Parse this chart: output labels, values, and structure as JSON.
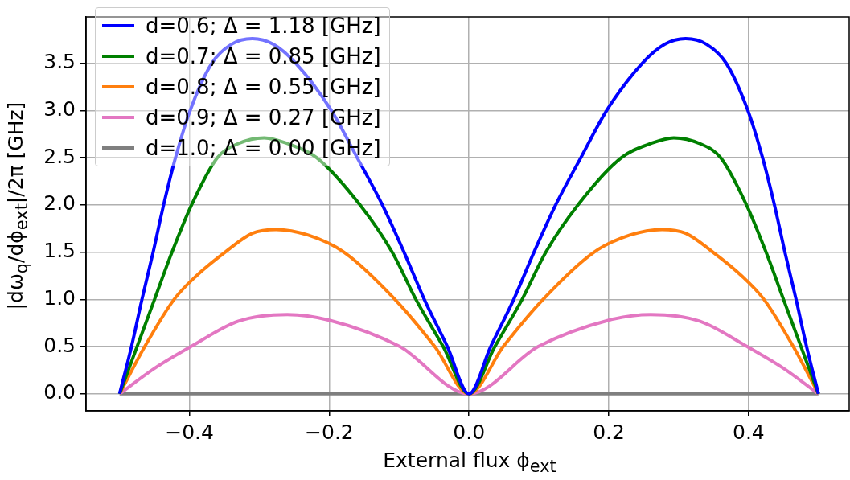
{
  "chart_data": {
    "type": "line",
    "xlabel": "External flux ϕ$_{ext}$",
    "ylabel": "|dω$_{q}$/dϕ$_{ext}$|/2π [GHz]",
    "xlim": [
      -0.548,
      0.544
    ],
    "ylim": [
      -0.18,
      3.99
    ],
    "xticks": [
      {
        "value": -0.4,
        "label": "−0.4"
      },
      {
        "value": -0.2,
        "label": "−0.2"
      },
      {
        "value": 0,
        "label": "0.0"
      },
      {
        "value": 0.2,
        "label": "0.2"
      },
      {
        "value": 0.4,
        "label": "0.4"
      }
    ],
    "yticks": [
      {
        "value": 0,
        "label": "0.0"
      },
      {
        "value": 0.5,
        "label": "0.5"
      },
      {
        "value": 1,
        "label": "1.0"
      },
      {
        "value": 1.5,
        "label": "1.5"
      },
      {
        "value": 2,
        "label": "2.0"
      },
      {
        "value": 2.5,
        "label": "2.5"
      },
      {
        "value": 3,
        "label": "3.0"
      },
      {
        "value": 3.5,
        "label": "3.5"
      }
    ],
    "grid": true,
    "legend": "top left",
    "marker": "none",
    "line_style": "solid",
    "series": [
      {
        "name": "d=0.6; Δ = 1.18 [GHz]",
        "color": "#0000ff",
        "x": [
          -0.5,
          -0.483,
          -0.468,
          -0.452,
          -0.437,
          -0.42,
          -0.399,
          -0.368,
          -0.34,
          -0.31,
          -0.28,
          -0.248,
          -0.197,
          -0.16,
          -0.124,
          -0.093,
          -0.064,
          -0.031,
          0,
          0.031,
          0.064,
          0.093,
          0.124,
          0.16,
          0.197,
          0.248,
          0.28,
          0.31,
          0.34,
          0.368,
          0.399,
          0.42,
          0.437,
          0.452,
          0.468,
          0.483,
          0.5
        ],
        "values": [
          0,
          0.5,
          1.0,
          1.5,
          2.0,
          2.5,
          3.0,
          3.5,
          3.7,
          3.76,
          3.7,
          3.5,
          3.0,
          2.5,
          2.0,
          1.5,
          1.0,
          0.5,
          0,
          0.5,
          1.0,
          1.5,
          2.0,
          2.5,
          3.0,
          3.5,
          3.7,
          3.76,
          3.7,
          3.5,
          3.0,
          2.5,
          2.0,
          1.5,
          1.0,
          0.5,
          0
        ]
      },
      {
        "name": "d=0.7; Δ = 0.85 [GHz]",
        "color": "#008000",
        "x": [
          -0.5,
          -0.475,
          -0.45,
          -0.425,
          -0.397,
          -0.36,
          -0.33,
          -0.293,
          -0.26,
          -0.218,
          -0.156,
          -0.11,
          -0.076,
          -0.037,
          0,
          0.037,
          0.076,
          0.11,
          0.156,
          0.218,
          0.26,
          0.293,
          0.33,
          0.36,
          0.397,
          0.425,
          0.45,
          0.475,
          0.5
        ],
        "values": [
          0,
          0.5,
          1.0,
          1.5,
          2.0,
          2.5,
          2.65,
          2.71,
          2.65,
          2.5,
          2.0,
          1.5,
          1.0,
          0.5,
          0,
          0.5,
          1.0,
          1.5,
          2.0,
          2.5,
          2.65,
          2.71,
          2.65,
          2.5,
          2.0,
          1.5,
          1.0,
          0.5,
          0
        ]
      },
      {
        "name": "d=0.8; Δ = 0.55 [GHz]",
        "color": "#ff7f0e",
        "x": [
          -0.5,
          -0.464,
          -0.422,
          -0.39,
          -0.349,
          -0.31,
          -0.276,
          -0.23,
          -0.179,
          -0.106,
          -0.049,
          0,
          0.049,
          0.106,
          0.179,
          0.23,
          0.276,
          0.31,
          0.349,
          0.39,
          0.422,
          0.464,
          0.5
        ],
        "values": [
          0,
          0.5,
          1.0,
          1.25,
          1.5,
          1.7,
          1.74,
          1.68,
          1.5,
          1.0,
          0.5,
          0,
          0.5,
          1.0,
          1.5,
          1.68,
          1.74,
          1.7,
          1.5,
          1.25,
          1.0,
          0.5,
          0
        ]
      },
      {
        "name": "d=0.9; Δ = 0.27 [GHz]",
        "color": "#e377c2",
        "x": [
          -0.5,
          -0.45,
          -0.398,
          -0.33,
          -0.26,
          -0.2,
          -0.099,
          0,
          0.099,
          0.2,
          0.26,
          0.33,
          0.398,
          0.45,
          0.5
        ],
        "values": [
          0,
          0.27,
          0.5,
          0.77,
          0.84,
          0.78,
          0.5,
          0,
          0.5,
          0.78,
          0.84,
          0.77,
          0.5,
          0.27,
          0
        ]
      },
      {
        "name": "d=1.0; Δ = 0.00 [GHz]",
        "color": "#7f7f7f",
        "x": [
          -0.5,
          0.5
        ],
        "values": [
          0,
          0
        ]
      }
    ]
  }
}
